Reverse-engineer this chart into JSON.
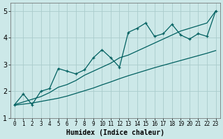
{
  "title": "",
  "xlabel": "Humidex (Indice chaleur)",
  "bg_color": "#cce8e8",
  "grid_color": "#aacccc",
  "line_color": "#006060",
  "xlim": [
    -0.5,
    23.5
  ],
  "ylim": [
    1.0,
    5.3
  ],
  "xticks": [
    0,
    1,
    2,
    3,
    4,
    5,
    6,
    7,
    8,
    9,
    10,
    11,
    12,
    13,
    14,
    15,
    16,
    17,
    18,
    19,
    20,
    21,
    22,
    23
  ],
  "yticks": [
    1,
    2,
    3,
    4,
    5
  ],
  "series1_x": [
    0,
    1,
    2,
    3,
    4,
    5,
    6,
    7,
    8,
    9,
    10,
    11,
    12,
    13,
    14,
    15,
    16,
    17,
    18,
    19,
    20,
    21,
    22,
    23
  ],
  "series1_y": [
    1.5,
    1.9,
    1.5,
    2.0,
    2.1,
    2.85,
    2.75,
    2.65,
    2.8,
    3.25,
    3.55,
    3.25,
    2.9,
    4.2,
    4.35,
    4.55,
    4.05,
    4.15,
    4.5,
    4.1,
    3.95,
    4.15,
    4.05,
    5.0
  ],
  "series2_x": [
    0,
    1,
    2,
    3,
    4,
    5,
    6,
    7,
    8,
    9,
    10,
    11,
    12,
    13,
    14,
    15,
    16,
    17,
    18,
    19,
    20,
    21,
    22,
    23
  ],
  "series2_y": [
    1.48,
    1.52,
    1.56,
    1.62,
    1.68,
    1.74,
    1.82,
    1.92,
    2.02,
    2.12,
    2.24,
    2.35,
    2.47,
    2.58,
    2.68,
    2.78,
    2.88,
    2.97,
    3.06,
    3.15,
    3.24,
    3.33,
    3.42,
    3.52
  ],
  "series3_x": [
    0,
    1,
    2,
    3,
    4,
    5,
    6,
    7,
    8,
    9,
    10,
    11,
    12,
    13,
    14,
    15,
    16,
    17,
    18,
    19,
    20,
    21,
    22,
    23
  ],
  "series3_y": [
    1.5,
    1.6,
    1.7,
    1.8,
    1.95,
    2.15,
    2.25,
    2.4,
    2.6,
    2.75,
    2.9,
    3.05,
    3.25,
    3.35,
    3.5,
    3.65,
    3.8,
    3.95,
    4.1,
    4.25,
    4.35,
    4.45,
    4.55,
    5.0
  ],
  "marker_size": 3.5,
  "linewidth": 0.9
}
